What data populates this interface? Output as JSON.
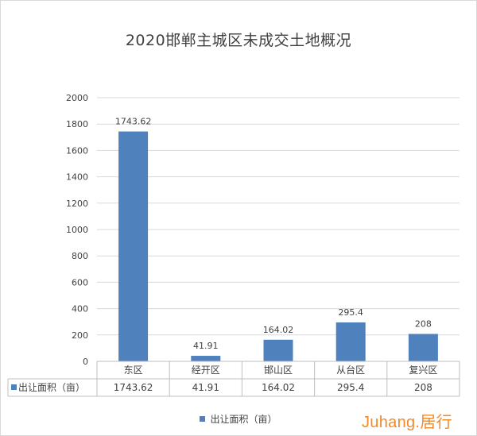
{
  "chart_data": {
    "type": "bar",
    "title": "2020邯郸主城区未成交土地概况",
    "categories": [
      "东区",
      "经开区",
      "邯山区",
      "从台区",
      "复兴区"
    ],
    "series": [
      {
        "name": "出让面积（亩）",
        "values": [
          1743.62,
          41.91,
          164.02,
          295.4,
          208
        ],
        "color": "#4f81bd"
      }
    ],
    "value_labels": [
      "1743.62",
      "41.91",
      "164.02",
      "295.4",
      "208"
    ],
    "y_ticks": [
      "0",
      "200",
      "400",
      "600",
      "800",
      "1000",
      "1200",
      "1400",
      "1600",
      "1800",
      "2000"
    ],
    "ylim": [
      0,
      2000
    ],
    "grid": true,
    "legend": "bottom",
    "data_table": true
  },
  "watermark": {
    "brand": "Juhang.",
    "suffix": "居行"
  }
}
